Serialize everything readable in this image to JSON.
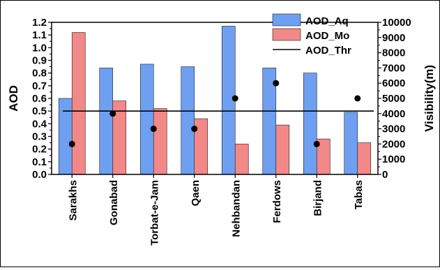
{
  "chart_data": {
    "type": "bar",
    "categories": [
      "Sarakhs",
      "Gonabad",
      "Torbat-e-Jam",
      "Qaen",
      "Nehbandan",
      "Ferdows",
      "Birjand",
      "Tabas"
    ],
    "series": [
      {
        "name": "AOD_Aq",
        "values": [
          0.6,
          0.84,
          0.87,
          0.85,
          1.17,
          0.84,
          0.8,
          0.49
        ],
        "color": "#6f9ff0",
        "kind": "bar"
      },
      {
        "name": "AOD_Mo",
        "values": [
          1.12,
          0.58,
          0.52,
          0.44,
          0.24,
          0.39,
          0.28,
          0.25
        ],
        "color": "#f28888",
        "kind": "bar"
      }
    ],
    "threshold": {
      "name": "AOD_Thr",
      "value": 0.5
    },
    "visibility": {
      "values": [
        2000,
        4000,
        3000,
        3000,
        5000,
        6000,
        2000,
        5000
      ],
      "marker": "filled-circle"
    },
    "ylabel": "AOD",
    "y2label": "Visibility(m)",
    "ylim": [
      0,
      1.2
    ],
    "y2lim": [
      0,
      10000
    ],
    "yticks": [
      "0.0",
      "0.1",
      "0.2",
      "0.3",
      "0.4",
      "0.5",
      "0.6",
      "0.7",
      "0.8",
      "0.9",
      "1.0",
      "1.1",
      "1.2"
    ],
    "y2ticks": [
      "0",
      "1000",
      "2000",
      "3000",
      "4000",
      "5000",
      "6000",
      "7000",
      "8000",
      "9000",
      "10000"
    ],
    "legend_position": "top-right",
    "grid": false
  }
}
